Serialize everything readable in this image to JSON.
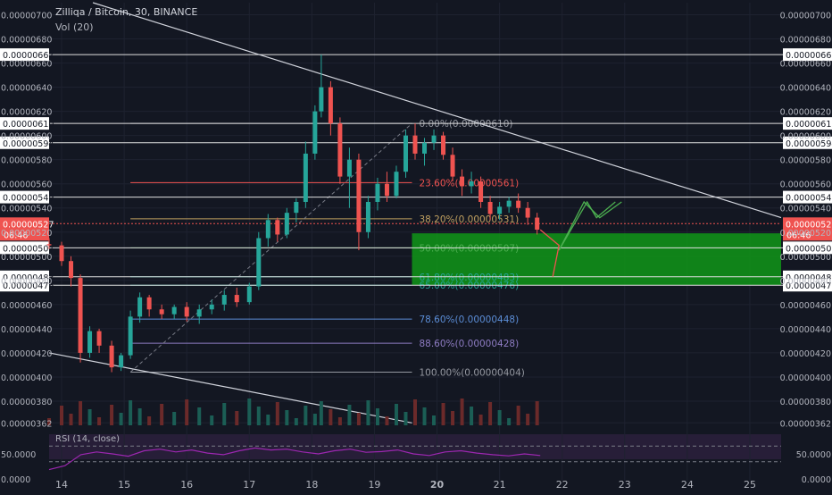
{
  "header": {
    "title": "Zilliqa / Bitcoin, 30, BINANCE",
    "volume_label": "Vol (20)"
  },
  "chart_data": {
    "type": "candlestick",
    "pair": "Zilliqa / Bitcoin",
    "interval": "30",
    "exchange": "BINANCE",
    "price_axis_ticks": [
      "0.00000700",
      "0.00000680",
      "0.00000660",
      "0.00000640",
      "0.00000620",
      "0.00000600",
      "0.00000580",
      "0.00000560",
      "0.00000540",
      "0.00000520",
      "0.00000500",
      "0.00000480",
      "0.00000460",
      "0.00000440",
      "0.00000420",
      "0.00000400",
      "0.00000380",
      "0.00000362"
    ],
    "ylim": [
      3.6e-06,
      7.1e-06
    ],
    "xlim": [
      13.8,
      25.5
    ],
    "x_ticks": [
      {
        "v": 14,
        "label": "14"
      },
      {
        "v": 15,
        "label": "15"
      },
      {
        "v": 16,
        "label": "16"
      },
      {
        "v": 17,
        "label": "17"
      },
      {
        "v": 18,
        "label": "18"
      },
      {
        "v": 19,
        "label": "19"
      },
      {
        "v": 20,
        "label": "20"
      },
      {
        "v": 21,
        "label": "21"
      },
      {
        "v": 22,
        "label": "22"
      },
      {
        "v": 23,
        "label": "23"
      },
      {
        "v": 24,
        "label": "24"
      },
      {
        "v": 25,
        "label": "25"
      }
    ],
    "current_price": {
      "value": 5.27e-06,
      "label": "0.00000527",
      "countdown": "06:46"
    },
    "horizontal_levels": [
      {
        "value": 6.67e-06,
        "label": "0.00000667"
      },
      {
        "value": 6.1e-06,
        "label": "0.00000610"
      },
      {
        "value": 5.94e-06,
        "label": "0.00000594"
      },
      {
        "value": 5.49e-06,
        "label": "0.00000549"
      },
      {
        "value": 5.07e-06,
        "label": "0.00000507"
      },
      {
        "value": 4.83e-06,
        "label": "0.00000483"
      },
      {
        "value": 4.76e-06,
        "label": "0.00000476"
      }
    ],
    "fib_levels": [
      {
        "ratio": "0.00%",
        "value": 6.1e-06,
        "label": "0.00%(0.00000610)",
        "color": "#9598a1"
      },
      {
        "ratio": "23.60%",
        "value": 5.61e-06,
        "label": "23.60%(0.00000561)",
        "color": "#ef5350"
      },
      {
        "ratio": "38.20%",
        "value": 5.31e-06,
        "label": "38.20%(0.00000531)",
        "color": "#c0a060"
      },
      {
        "ratio": "50.00%",
        "value": 5.07e-06,
        "label": "50.00%(0.00000507)",
        "color": "#4caf50"
      },
      {
        "ratio": "61.80%",
        "value": 4.83e-06,
        "label": "61.80%(0.00000483)",
        "color": "#26a69a"
      },
      {
        "ratio": "65.00%",
        "value": 4.76e-06,
        "label": "65.00%(0.00000476)",
        "color": "#26a69a"
      },
      {
        "ratio": "78.60%",
        "value": 4.48e-06,
        "label": "78.60%(0.00000448)",
        "color": "#5b8dd6"
      },
      {
        "ratio": "88.60%",
        "value": 4.28e-06,
        "label": "88.60%(0.00000428)",
        "color": "#8e7cc3"
      },
      {
        "ratio": "100.00%",
        "value": 4.04e-06,
        "label": "100.00%(0.00000404)",
        "color": "#9598a1"
      }
    ],
    "fib_range": {
      "x_start": 15.1,
      "x_end": 19.6
    },
    "green_zone": {
      "x_start": 19.6,
      "x_end": 25.5,
      "y_top": 5.19e-06,
      "y_bottom": 4.76e-06
    },
    "trendlines": [
      {
        "x1": 14.5,
        "y1": 7.1e-06,
        "x2": 25.5,
        "y2": 5.32e-06
      },
      {
        "x1": 13.8,
        "y1": 4.2e-06,
        "x2": 19.6,
        "y2": 3.62e-06
      }
    ],
    "projection_paths": [
      {
        "color": "#ef5350",
        "points": [
          [
            21.65,
            5.22e-06
          ],
          [
            21.95,
            5.09e-06
          ],
          [
            21.85,
            4.83e-06
          ],
          [
            21.85,
            4.83e-06
          ]
        ]
      },
      {
        "color": "#4caf50",
        "points": [
          [
            21.95,
            5.05e-06
          ],
          [
            22.4,
            5.45e-06
          ],
          [
            22.55,
            5.32e-06
          ],
          [
            22.85,
            5.45e-06
          ]
        ]
      },
      {
        "color": "#4caf50",
        "points": [
          [
            21.95,
            5.05e-06
          ],
          [
            22.35,
            5.45e-06
          ],
          [
            22.6,
            5.32e-06
          ],
          [
            22.95,
            5.45e-06
          ]
        ]
      }
    ],
    "candles": [
      [
        13.8,
        5.1e-06,
        5.15e-06,
        5.06e-06,
        5.09e-06
      ],
      [
        14.0,
        5.09e-06,
        5.12e-06,
        4.92e-06,
        4.96e-06
      ],
      [
        14.15,
        4.96e-06,
        5e-06,
        4.75e-06,
        4.82e-06
      ],
      [
        14.3,
        4.82e-06,
        4.85e-06,
        4.12e-06,
        4.2e-06
      ],
      [
        14.45,
        4.2e-06,
        4.42e-06,
        4.16e-06,
        4.38e-06
      ],
      [
        14.6,
        4.38e-06,
        4.4e-06,
        4.2e-06,
        4.26e-06
      ],
      [
        14.8,
        4.26e-06,
        4.3e-06,
        4.04e-06,
        4.08e-06
      ],
      [
        14.95,
        4.08e-06,
        4.2e-06,
        4.05e-06,
        4.18e-06
      ],
      [
        15.1,
        4.18e-06,
        4.55e-06,
        4.15e-06,
        4.5e-06
      ],
      [
        15.25,
        4.5e-06,
        4.7e-06,
        4.45e-06,
        4.66e-06
      ],
      [
        15.4,
        4.66e-06,
        4.68e-06,
        4.5e-06,
        4.56e-06
      ],
      [
        15.6,
        4.56e-06,
        4.6e-06,
        4.48e-06,
        4.52e-06
      ],
      [
        15.8,
        4.52e-06,
        4.6e-06,
        4.48e-06,
        4.58e-06
      ],
      [
        16.0,
        4.58e-06,
        4.62e-06,
        4.46e-06,
        4.5e-06
      ],
      [
        16.2,
        4.5e-06,
        4.6e-06,
        4.44e-06,
        4.56e-06
      ],
      [
        16.4,
        4.56e-06,
        4.64e-06,
        4.52e-06,
        4.6e-06
      ],
      [
        16.6,
        4.6e-06,
        4.72e-06,
        4.55e-06,
        4.68e-06
      ],
      [
        16.8,
        4.68e-06,
        4.74e-06,
        4.58e-06,
        4.62e-06
      ],
      [
        17.0,
        4.62e-06,
        4.78e-06,
        4.6e-06,
        4.75e-06
      ],
      [
        17.15,
        4.75e-06,
        5.2e-06,
        4.72e-06,
        5.15e-06
      ],
      [
        17.3,
        5.15e-06,
        5.35e-06,
        5.08e-06,
        5.3e-06
      ],
      [
        17.45,
        5.3e-06,
        5.32e-06,
        5.12e-06,
        5.18e-06
      ],
      [
        17.6,
        5.18e-06,
        5.4e-06,
        5.15e-06,
        5.36e-06
      ],
      [
        17.75,
        5.36e-06,
        5.48e-06,
        5.28e-06,
        5.45e-06
      ],
      [
        17.9,
        5.45e-06,
        5.95e-06,
        5.4e-06,
        5.85e-06
      ],
      [
        18.05,
        5.85e-06,
        6.25e-06,
        5.8e-06,
        6.2e-06
      ],
      [
        18.15,
        6.2e-06,
        6.67e-06,
        6.15e-06,
        6.4e-06
      ],
      [
        18.3,
        6.4e-06,
        6.45e-06,
        6e-06,
        6.1e-06
      ],
      [
        18.45,
        6.1e-06,
        6.15e-06,
        5.6e-06,
        5.66e-06
      ],
      [
        18.6,
        5.66e-06,
        5.9e-06,
        5.4e-06,
        5.8e-06
      ],
      [
        18.75,
        5.8e-06,
        5.85e-06,
        5.05e-06,
        5.2e-06
      ],
      [
        18.9,
        5.2e-06,
        5.5e-06,
        5.15e-06,
        5.45e-06
      ],
      [
        19.05,
        5.45e-06,
        5.65e-06,
        5.38e-06,
        5.6e-06
      ],
      [
        19.2,
        5.6e-06,
        5.7e-06,
        5.45e-06,
        5.5e-06
      ],
      [
        19.35,
        5.5e-06,
        5.75e-06,
        5.48e-06,
        5.7e-06
      ],
      [
        19.5,
        5.7e-06,
        6.05e-06,
        5.65e-06,
        6e-06
      ],
      [
        19.65,
        6e-06,
        6.1e-06,
        5.8e-06,
        5.85e-06
      ],
      [
        19.8,
        5.85e-06,
        5.98e-06,
        5.75e-06,
        5.94e-06
      ],
      [
        19.95,
        5.94e-06,
        6.05e-06,
        5.88e-06,
        6e-06
      ],
      [
        20.1,
        6e-06,
        6.03e-06,
        5.8e-06,
        5.84e-06
      ],
      [
        20.25,
        5.84e-06,
        5.9e-06,
        5.62e-06,
        5.66e-06
      ],
      [
        20.4,
        5.66e-06,
        5.72e-06,
        5.5e-06,
        5.58e-06
      ],
      [
        20.55,
        5.58e-06,
        5.7e-06,
        5.52e-06,
        5.62e-06
      ],
      [
        20.7,
        5.62e-06,
        5.66e-06,
        5.4e-06,
        5.45e-06
      ],
      [
        20.85,
        5.45e-06,
        5.5e-06,
        5.3e-06,
        5.35e-06
      ],
      [
        21.0,
        5.35e-06,
        5.45e-06,
        5.3e-06,
        5.41e-06
      ],
      [
        21.15,
        5.41e-06,
        5.49e-06,
        5.36e-06,
        5.46e-06
      ],
      [
        21.3,
        5.46e-06,
        5.52e-06,
        5.36e-06,
        5.4e-06
      ],
      [
        21.45,
        5.4e-06,
        5.45e-06,
        5.26e-06,
        5.32e-06
      ],
      [
        21.6,
        5.32e-06,
        5.36e-06,
        5.18e-06,
        5.22e-06
      ]
    ],
    "volume": {
      "label": "Vol (20)"
    },
    "rsi": {
      "label": "RSI (14, close)",
      "ticks": [
        "50.0000",
        "0.0000"
      ],
      "upper": 70,
      "lower": 30,
      "values": [
        10,
        20,
        48,
        55,
        50,
        44,
        58,
        62,
        55,
        60,
        52,
        48,
        58,
        65,
        60,
        62,
        55,
        50,
        58,
        62,
        54,
        56,
        60,
        50,
        46,
        55,
        58,
        52,
        48,
        45,
        50,
        46
      ]
    }
  }
}
